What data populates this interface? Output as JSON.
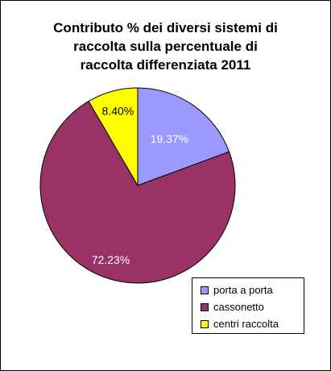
{
  "chart_data": {
    "type": "pie",
    "title_lines": [
      "Contributo % dei diversi sistemi di",
      "raccolta sulla percentuale di",
      "raccolta differenziata 2011"
    ],
    "categories": [
      "porta a porta",
      "cassonetto",
      "centri raccolta"
    ],
    "values": [
      19.37,
      72.23,
      8.4
    ],
    "data_labels": [
      "19.37%",
      "72.23%",
      "8.40%"
    ],
    "colors": [
      "#9999ff",
      "#993366",
      "#ffff00"
    ],
    "data_label_colors": [
      "#ffffff",
      "#ffffff",
      "#000000"
    ],
    "legend_position": "bottom-right",
    "start_angle": "12 o'clock",
    "direction": "clockwise"
  }
}
